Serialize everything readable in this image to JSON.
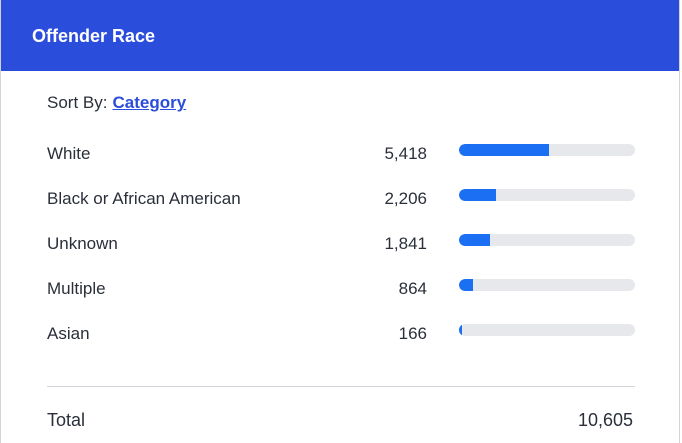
{
  "header": {
    "title": "Offender Race"
  },
  "sort": {
    "label": "Sort By:",
    "value": "Category"
  },
  "colors": {
    "header_bg": "#2b4ddb",
    "bar_fill": "#1a6ff2",
    "bar_track": "#e6e8ec"
  },
  "rows": [
    {
      "label": "White",
      "value": "5,418",
      "count": 5418
    },
    {
      "label": "Black or African American",
      "value": "2,206",
      "count": 2206
    },
    {
      "label": "Unknown",
      "value": "1,841",
      "count": 1841
    },
    {
      "label": "Multiple",
      "value": "864",
      "count": 864
    },
    {
      "label": "Asian",
      "value": "166",
      "count": 166
    }
  ],
  "total": {
    "label": "Total",
    "value": "10,605",
    "count": 10605
  }
}
